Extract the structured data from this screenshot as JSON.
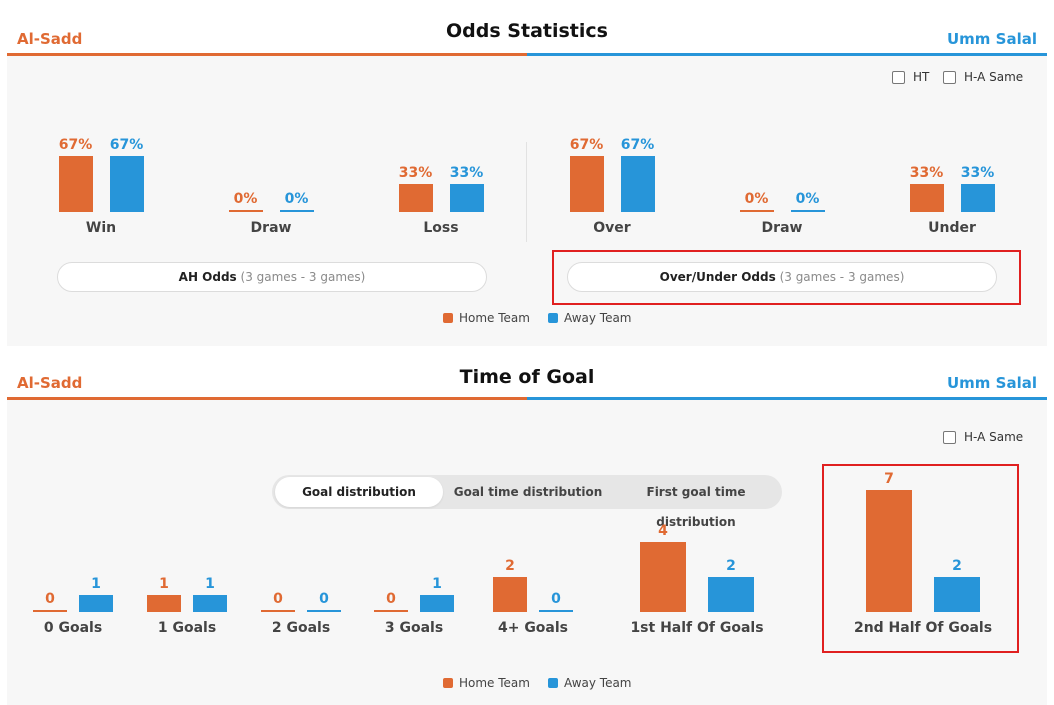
{
  "teams": {
    "home": "Al-Sadd",
    "away": "Umm Salal"
  },
  "colors": {
    "home": "#e06a33",
    "away": "#2795d9",
    "highlight": "#e02020"
  },
  "odds": {
    "title": "Odds Statistics",
    "options": {
      "ht": "HT",
      "ha_same": "H-A Same"
    },
    "ah": {
      "categories": [
        "Win",
        "Draw",
        "Loss"
      ],
      "home": [
        "67%",
        "0%",
        "33%"
      ],
      "away": [
        "67%",
        "0%",
        "33%"
      ],
      "button_label": "AH Odds",
      "button_games": "(3 games - 3 games)"
    },
    "ou": {
      "categories": [
        "Over",
        "Draw",
        "Under"
      ],
      "home": [
        "67%",
        "0%",
        "33%"
      ],
      "away": [
        "67%",
        "0%",
        "33%"
      ],
      "button_label": "Over/Under Odds",
      "button_games": "(3 games - 3 games)"
    },
    "legend": {
      "home": "Home Team",
      "away": "Away Team"
    }
  },
  "goals": {
    "title": "Time of Goal",
    "tabs": [
      "Goal distribution",
      "Goal time distribution",
      "First goal time distribution"
    ],
    "active_tab": 0,
    "options": {
      "ha_same": "H-A Same"
    },
    "legend": {
      "home": "Home Team",
      "away": "Away Team"
    }
  },
  "chart_data": [
    {
      "type": "bar",
      "title": "",
      "categories": [
        "Win",
        "Draw",
        "Loss"
      ],
      "series": [
        {
          "name": "Home Team",
          "values": [
            67,
            0,
            33
          ]
        },
        {
          "name": "Away Team",
          "values": [
            67,
            0,
            33
          ]
        }
      ],
      "ylim": [
        0,
        100
      ]
    },
    {
      "type": "bar",
      "title": "",
      "categories": [
        "Over",
        "Draw",
        "Under"
      ],
      "series": [
        {
          "name": "Home Team",
          "values": [
            67,
            0,
            33
          ]
        },
        {
          "name": "Away Team",
          "values": [
            67,
            0,
            33
          ]
        }
      ],
      "ylim": [
        0,
        100
      ]
    },
    {
      "type": "bar",
      "title": "",
      "categories": [
        "0 Goals",
        "1 Goals",
        "2 Goals",
        "3 Goals",
        "4+ Goals"
      ],
      "series": [
        {
          "name": "Home Team",
          "values": [
            0,
            1,
            0,
            0,
            2
          ]
        },
        {
          "name": "Away Team",
          "values": [
            1,
            1,
            0,
            1,
            0
          ]
        }
      ],
      "ylim": [
        0,
        7
      ]
    },
    {
      "type": "bar",
      "title": "",
      "categories": [
        "1st Half Of Goals",
        "2nd Half Of Goals"
      ],
      "series": [
        {
          "name": "Home Team",
          "values": [
            4,
            7
          ]
        },
        {
          "name": "Away Team",
          "values": [
            2,
            2
          ]
        }
      ],
      "ylim": [
        0,
        7
      ]
    }
  ]
}
